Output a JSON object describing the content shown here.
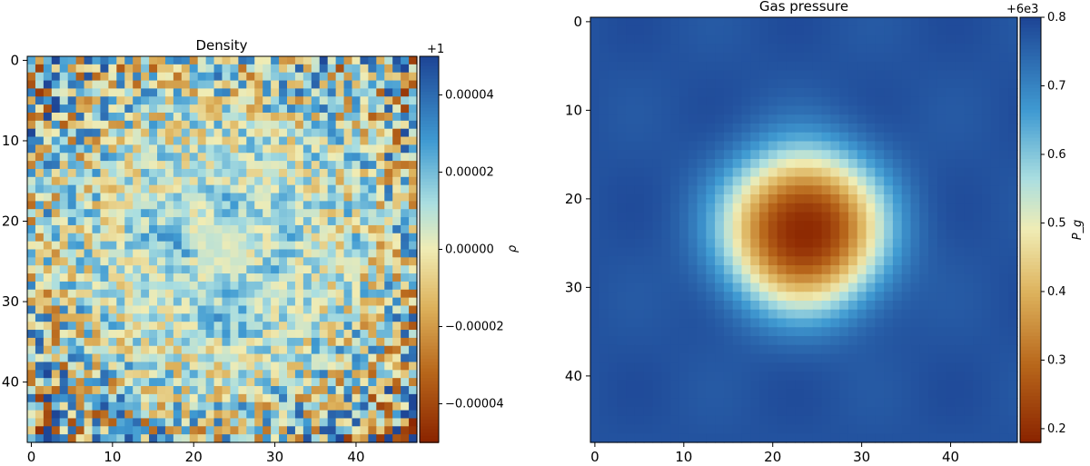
{
  "chart_data": [
    {
      "type": "heatmap",
      "title": "Density",
      "grid_size": [
        48,
        48
      ],
      "xticks": [
        "0",
        "10",
        "20",
        "30",
        "40"
      ],
      "yticks": [
        "0",
        "10",
        "20",
        "30",
        "40"
      ],
      "xtick_values": [
        0,
        10,
        20,
        30,
        40
      ],
      "ytick_values": [
        0,
        10,
        20,
        30,
        40
      ],
      "colormap": "RdYlBu",
      "colorbar": {
        "label": "ρ",
        "offset_text": "+1",
        "range": [
          -5e-05,
          5e-05
        ],
        "ticks": [
          "0.00004",
          "0.00002",
          "0.00000",
          "−0.00002",
          "−0.00004"
        ],
        "tick_values": [
          4e-05,
          2e-05,
          0.0,
          -2e-05,
          -4e-05
        ]
      },
      "description_of_values": "noisy field near 1; blue swirling ring structure around center (~24,24), strongest noise at corners"
    },
    {
      "type": "heatmap",
      "title": "Gas pressure",
      "grid_size": [
        48,
        48
      ],
      "xticks": [
        "0",
        "10",
        "20",
        "30",
        "40"
      ],
      "yticks": [
        "0",
        "10",
        "20",
        "30",
        "40"
      ],
      "xtick_values": [
        0,
        10,
        20,
        30,
        40
      ],
      "ytick_values": [
        0,
        10,
        20,
        30,
        40
      ],
      "colormap": "RdYlBu",
      "colorbar": {
        "label": "P_g",
        "offset_text": "+6e3",
        "range": [
          0.18,
          0.8
        ],
        "ticks": [
          "0.8",
          "0.7",
          "0.6",
          "0.5",
          "0.4",
          "0.3",
          "0.2"
        ],
        "tick_values": [
          0.8,
          0.7,
          0.6,
          0.5,
          0.4,
          0.3,
          0.2
        ]
      },
      "center": [
        23.5,
        23.5
      ],
      "center_value": 0.18,
      "background_value": 0.78
    }
  ],
  "colors": {
    "low": "#8b2500",
    "mid": "#f7f0b6",
    "high": "#1f52a0"
  }
}
